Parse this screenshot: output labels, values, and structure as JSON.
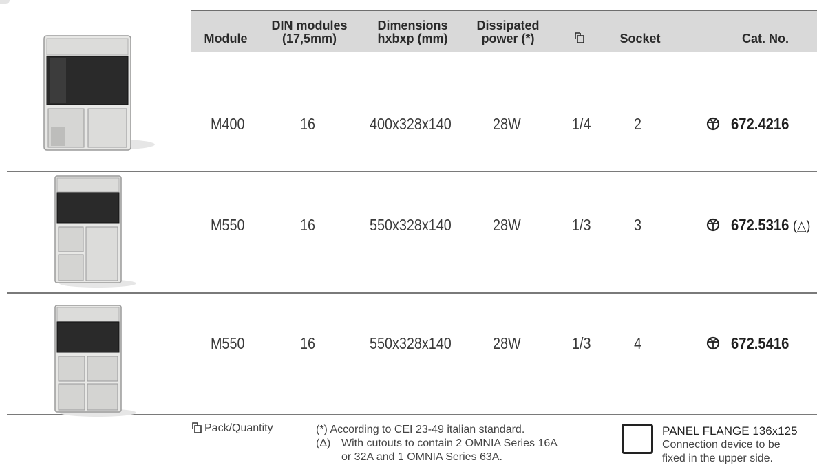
{
  "headers": {
    "module": "Module",
    "din_1": "DIN modules",
    "din_2": "(17,5mm)",
    "dim_1": "Dimensions",
    "dim_2": "hxbxp (mm)",
    "pow_1": "Dissipated",
    "pow_2": "power (*)",
    "pack_icon": "pack-quantity-icon",
    "socket": "Socket",
    "cat": "Cat. No."
  },
  "rows": [
    {
      "module": "M400",
      "din": "16",
      "dim": "400x328x140",
      "power": "28W",
      "pack": "1/4",
      "socket": "2",
      "cat": "672.4216",
      "suffix": "",
      "icon": "grid-symbol-icon"
    },
    {
      "module": "M550",
      "din": "16",
      "dim": "550x328x140",
      "power": "28W",
      "pack": "1/3",
      "socket": "3",
      "cat": "672.5316",
      "suffix": "(△)",
      "icon": "grid-symbol-icon"
    },
    {
      "module": "M550",
      "din": "16",
      "dim": "550x328x140",
      "power": "28W",
      "pack": "1/3",
      "socket": "4",
      "cat": "672.5416",
      "suffix": "",
      "icon": "grid-symbol-icon"
    }
  ],
  "footer": {
    "pack_label": "Pack/Quantity",
    "note1": "(*) According to CEI 23-49 italian standard.",
    "note2_sym": "(Δ)",
    "note2_a": "With cutouts to contain 2 OMNIA Series 16A",
    "note2_b": "or 32A and 1 OMNIA Series 63A.",
    "flange_title": "PANEL FLANGE 136x125",
    "flange_1": "Connection device to be",
    "flange_2": "fixed in the upper side."
  },
  "colors": {
    "header_bg": "#d9d9d9",
    "rule": "#7a7a7a"
  }
}
